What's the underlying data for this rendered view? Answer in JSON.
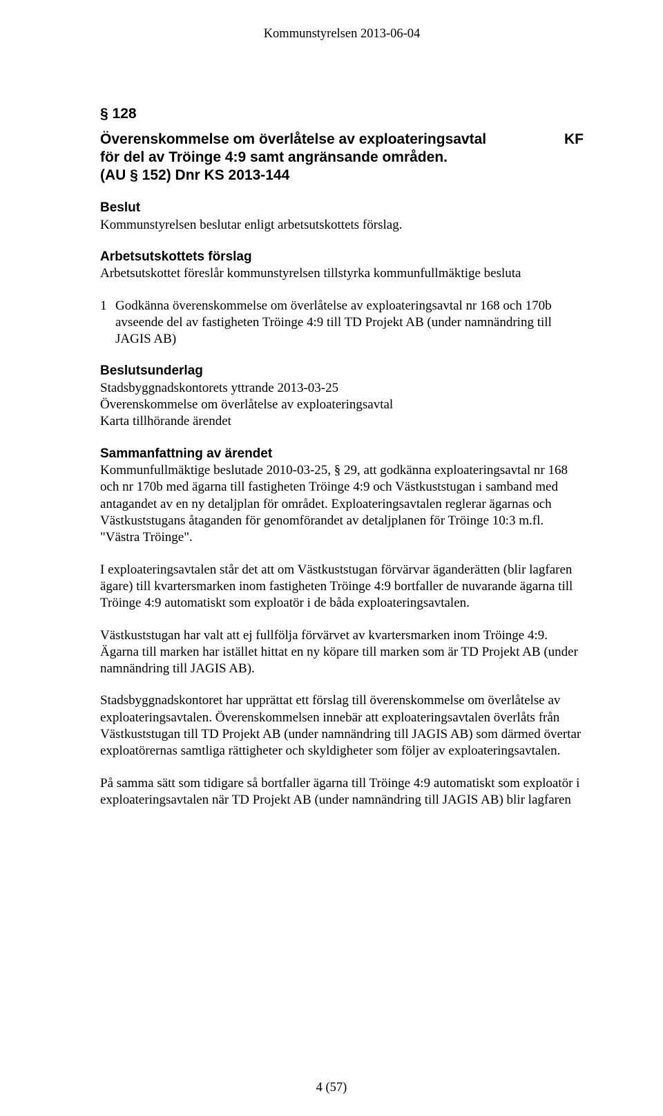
{
  "running_head": "Kommunstyrelsen 2013-06-04",
  "section_number": "§ 128",
  "title_line1": "Överenskommelse om överlåtelse av exploateringsavtal",
  "title_line2": "för del av Tröinge 4:9 samt angränsande områden.",
  "title_line3": "(AU § 152) Dnr KS 2013-144",
  "kf_label": "KF",
  "heading_beslut": "Beslut",
  "text_beslut": "Kommunstyrelsen beslutar enligt arbetsutskottets förslag.",
  "heading_au_forslag": "Arbetsutskottets förslag",
  "text_au_forslag": "Arbetsutskottet föreslår kommunstyrelsen tillstyrka kommunfullmäktige besluta",
  "list_num": "1",
  "list_text": "Godkänna överenskommelse om överlåtelse av exploateringsavtal nr 168 och 170b avseende del av fastigheten Tröinge 4:9 till TD Projekt AB (under namnändring till JAGIS AB)",
  "heading_underlag": "Beslutsunderlag",
  "underlag_l1": "Stadsbyggnadskontorets yttrande 2013-03-25",
  "underlag_l2": "Överenskommelse om överlåtelse av exploateringsavtal",
  "underlag_l3": "Karta tillhörande ärendet",
  "heading_sammanfattning": "Sammanfattning av ärendet",
  "p1": "Kommunfullmäktige beslutade 2010-03-25, § 29, att godkänna exploateringsavtal nr 168 och nr 170b med ägarna till fastigheten Tröinge 4:9 och Västkuststugan i samband med antagandet av en ny detaljplan för området. Exploateringsavtalen reglerar ägarnas och Västkuststugans åtaganden för genomförandet av detaljplanen för Tröinge 10:3 m.fl. \"Västra Tröinge\".",
  "p2": "I exploateringsavtalen står det att om Västkuststugan förvärvar äganderätten (blir lagfaren ägare) till kvartersmarken inom fastigheten Tröinge 4:9 bortfaller de nuvarande ägarna till Tröinge 4:9 automatiskt som exploatör i de båda exploateringsavtalen.",
  "p3": "Västkuststugan har valt att ej fullfölja förvärvet av kvartersmarken inom Tröinge 4:9. Ägarna till marken har istället hittat en ny köpare till marken som är TD Projekt AB (under namnändring till JAGIS AB).",
  "p4": "Stadsbyggnadskontoret har upprättat ett förslag till överenskommelse om överlåtelse av exploateringsavtalen. Överenskommelsen innebär att exploateringsavtalen överlåts från Västkuststugan till TD Projekt AB (under namnändring till JAGIS AB) som därmed övertar exploatörernas samtliga rättigheter och skyldigheter som följer av exploateringsavtalen.",
  "p5": "På samma sätt som tidigare så bortfaller ägarna till Tröinge 4:9 automatiskt som exploatör i exploateringsavtalen när TD Projekt AB (under namnändring till JAGIS AB) blir lagfaren",
  "page_number": "4 (57)"
}
